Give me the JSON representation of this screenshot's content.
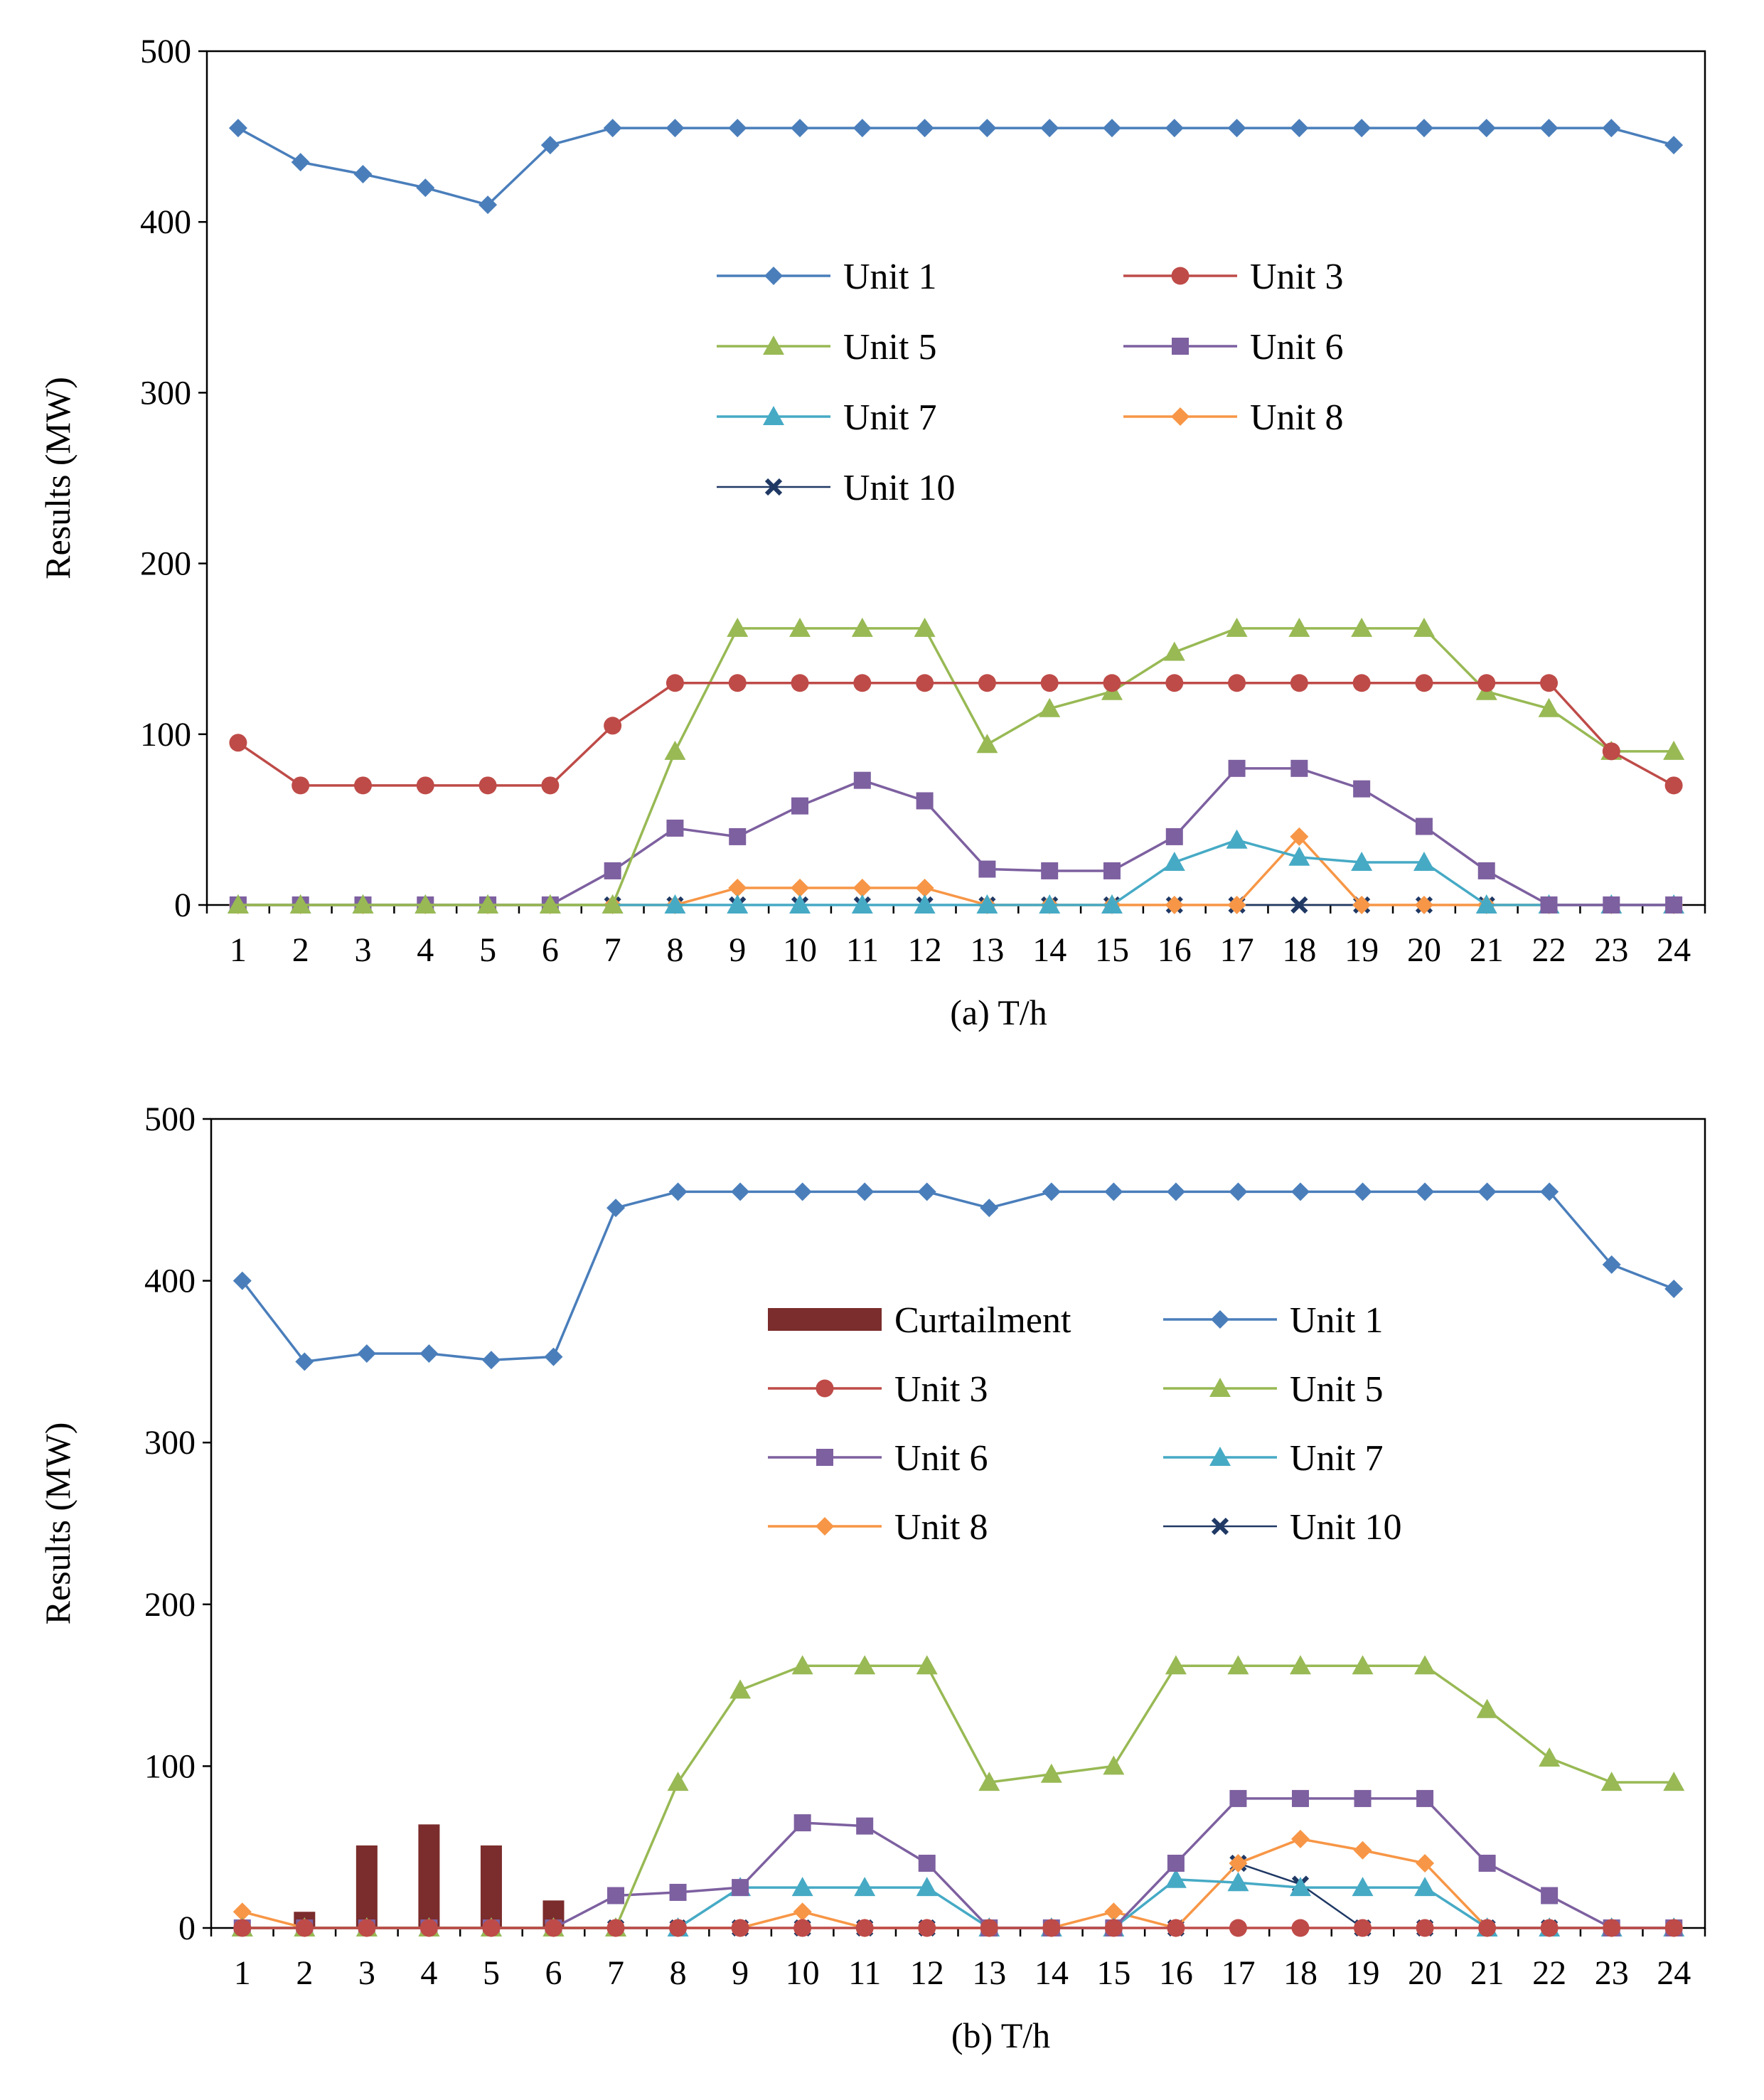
{
  "chart_data": [
    {
      "type": "line",
      "caption": "(a) T/h",
      "ylabel": "Results (MW)",
      "xlabel": "",
      "ylim": [
        0,
        500
      ],
      "yticks": [
        "0",
        "100",
        "200",
        "300",
        "400",
        "500"
      ],
      "categories": [
        "1",
        "2",
        "3",
        "4",
        "5",
        "6",
        "7",
        "8",
        "9",
        "10",
        "11",
        "12",
        "13",
        "14",
        "15",
        "16",
        "17",
        "18",
        "19",
        "20",
        "21",
        "22",
        "23",
        "24"
      ],
      "grid": false,
      "legend_position": "upper-center, inside plot, 2 columns",
      "series": [
        {
          "name": "Unit 1",
          "kind": "line",
          "marker": "diamond",
          "color": "#4A7EBB",
          "values": [
            455,
            435,
            428,
            420,
            410,
            445,
            455,
            455,
            455,
            455,
            455,
            455,
            455,
            455,
            455,
            455,
            455,
            455,
            455,
            455,
            455,
            455,
            455,
            445
          ]
        },
        {
          "name": "Unit 3",
          "kind": "line",
          "marker": "circle",
          "color": "#BE4B48",
          "values": [
            95,
            70,
            70,
            70,
            70,
            70,
            105,
            130,
            130,
            130,
            130,
            130,
            130,
            130,
            130,
            130,
            130,
            130,
            130,
            130,
            130,
            130,
            90,
            70
          ]
        },
        {
          "name": "Unit 5",
          "kind": "line",
          "marker": "triangle",
          "color": "#98B954",
          "values": [
            0,
            0,
            0,
            0,
            0,
            0,
            0,
            90,
            162,
            162,
            162,
            162,
            94,
            115,
            125,
            148,
            162,
            162,
            162,
            162,
            125,
            115,
            90,
            90
          ]
        },
        {
          "name": "Unit 6",
          "kind": "line",
          "marker": "square",
          "color": "#7D60A0",
          "values": [
            0,
            0,
            0,
            0,
            0,
            0,
            20,
            45,
            40,
            58,
            73,
            61,
            21,
            20,
            20,
            40,
            80,
            80,
            68,
            46,
            20,
            0,
            0,
            0
          ]
        },
        {
          "name": "Unit 7",
          "kind": "line",
          "marker": "triangle",
          "color": "#46AAC5",
          "values": [
            0,
            0,
            0,
            0,
            0,
            0,
            0,
            0,
            0,
            0,
            0,
            0,
            0,
            0,
            0,
            25,
            38,
            28,
            25,
            25,
            0,
            0,
            0,
            0
          ]
        },
        {
          "name": "Unit 8",
          "kind": "line",
          "marker": "diamond",
          "color": "#F79646",
          "values": [
            0,
            0,
            0,
            0,
            0,
            0,
            0,
            0,
            10,
            10,
            10,
            10,
            0,
            0,
            0,
            0,
            0,
            40,
            0,
            0,
            0,
            0,
            0,
            0
          ]
        },
        {
          "name": "Unit 10",
          "kind": "line",
          "marker": "x",
          "color": "#1F3864",
          "values": [
            0,
            0,
            0,
            0,
            0,
            0,
            0,
            0,
            0,
            0,
            0,
            0,
            0,
            0,
            0,
            0,
            0,
            0,
            0,
            0,
            0,
            0,
            0,
            0
          ]
        }
      ]
    },
    {
      "type": "line",
      "caption": "(b) T/h",
      "ylabel": "Results (MW)",
      "xlabel": "",
      "ylim": [
        0,
        500
      ],
      "yticks": [
        "0",
        "100",
        "200",
        "300",
        "400",
        "500"
      ],
      "categories": [
        "1",
        "2",
        "3",
        "4",
        "5",
        "6",
        "7",
        "8",
        "9",
        "10",
        "11",
        "12",
        "13",
        "14",
        "15",
        "16",
        "17",
        "18",
        "19",
        "20",
        "21",
        "22",
        "23",
        "24"
      ],
      "grid": false,
      "legend_position": "upper-center, inside plot, 2 columns",
      "series": [
        {
          "name": "Curtailment",
          "kind": "bar",
          "marker": "none",
          "color": "#7B2C2C",
          "values": [
            0,
            10,
            51,
            64,
            51,
            17,
            0,
            0,
            0,
            0,
            0,
            0,
            0,
            0,
            0,
            0,
            0,
            0,
            0,
            0,
            0,
            0,
            0,
            0
          ]
        },
        {
          "name": "Unit 1",
          "kind": "line",
          "marker": "diamond",
          "color": "#4A7EBB",
          "values": [
            400,
            350,
            355,
            355,
            351,
            353,
            445,
            455,
            455,
            455,
            455,
            455,
            445,
            455,
            455,
            455,
            455,
            455,
            455,
            455,
            455,
            455,
            410,
            395
          ]
        },
        {
          "name": "Unit 3",
          "kind": "line",
          "marker": "circle",
          "color": "#BE4B48",
          "values": [
            0,
            0,
            0,
            0,
            0,
            0,
            0,
            0,
            0,
            0,
            0,
            0,
            0,
            0,
            0,
            0,
            0,
            0,
            0,
            0,
            0,
            0,
            0,
            0
          ]
        },
        {
          "name": "Unit 5",
          "kind": "line",
          "marker": "triangle",
          "color": "#98B954",
          "values": [
            0,
            0,
            0,
            0,
            0,
            0,
            0,
            90,
            147,
            162,
            162,
            162,
            90,
            95,
            100,
            162,
            162,
            162,
            162,
            162,
            135,
            105,
            90,
            90
          ]
        },
        {
          "name": "Unit 6",
          "kind": "line",
          "marker": "square",
          "color": "#7D60A0",
          "values": [
            0,
            0,
            0,
            0,
            0,
            0,
            20,
            22,
            25,
            65,
            63,
            40,
            0,
            0,
            0,
            40,
            80,
            80,
            80,
            80,
            40,
            20,
            0,
            0
          ]
        },
        {
          "name": "Unit 7",
          "kind": "line",
          "marker": "triangle",
          "color": "#46AAC5",
          "values": [
            0,
            0,
            0,
            0,
            0,
            0,
            0,
            0,
            25,
            25,
            25,
            25,
            0,
            0,
            0,
            30,
            28,
            25,
            25,
            25,
            0,
            0,
            0,
            0
          ]
        },
        {
          "name": "Unit 8",
          "kind": "line",
          "marker": "diamond",
          "color": "#F79646",
          "values": [
            10,
            0,
            0,
            0,
            0,
            0,
            0,
            0,
            0,
            10,
            0,
            0,
            0,
            0,
            10,
            0,
            40,
            55,
            48,
            40,
            0,
            0,
            0,
            0
          ]
        },
        {
          "name": "Unit 10",
          "kind": "line",
          "marker": "x",
          "color": "#1F3864",
          "values": [
            0,
            0,
            0,
            0,
            0,
            0,
            0,
            0,
            0,
            0,
            0,
            0,
            0,
            0,
            0,
            0,
            40,
            27,
            0,
            0,
            0,
            0,
            0,
            0
          ]
        }
      ]
    }
  ]
}
